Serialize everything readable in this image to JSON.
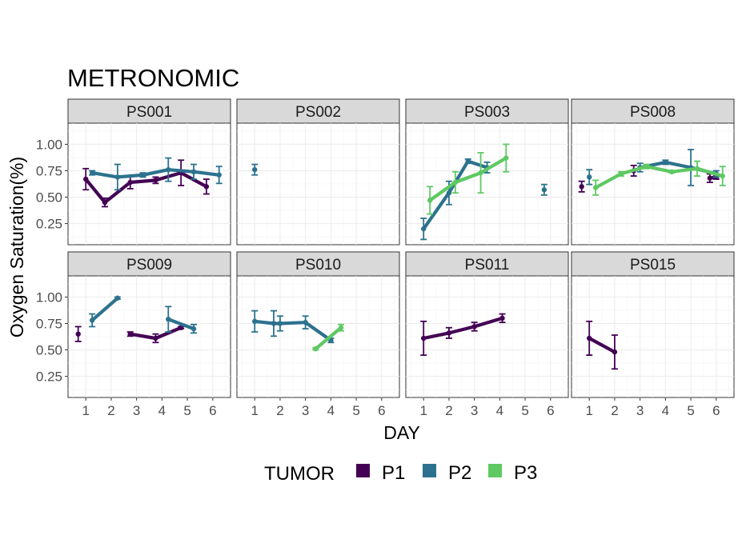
{
  "chart_data": {
    "type": "line",
    "title": "METRONOMIC",
    "xlabel": "DAY",
    "ylabel": "Oxygen Saturation(%)",
    "xlim": [
      0.3,
      6.7
    ],
    "ylim": [
      0.05,
      1.2
    ],
    "x_ticks": [
      "1",
      "2",
      "3",
      "4",
      "5",
      "6"
    ],
    "y_ticks": [
      "0.25",
      "0.50",
      "0.75",
      "1.00"
    ],
    "grid": true,
    "legend": {
      "title": "TUMOR",
      "position": "bottom",
      "entries": [
        {
          "name": "P1",
          "color": "#440154"
        },
        {
          "name": "P2",
          "color": "#2c728e"
        },
        {
          "name": "P3",
          "color": "#5ec962"
        }
      ]
    },
    "panels": [
      {
        "name": "PS001",
        "series": [
          {
            "name": "P1",
            "segments": [
              [
                [
                  1,
                  0.67,
                  0.1
                ],
                [
                  1.75,
                  0.45,
                  0.04
                ],
                [
                  2.75,
                  0.64,
                  0.06
                ],
                [
                  3.75,
                  0.66,
                  0.03
                ],
                [
                  4.75,
                  0.73,
                  0.12
                ],
                [
                  5.75,
                  0.6,
                  0.07
                ]
              ]
            ]
          },
          {
            "name": "P2",
            "segments": [
              [
                [
                  1.25,
                  0.73,
                  0.02
                ],
                [
                  2.25,
                  0.69,
                  0.12
                ],
                [
                  3.25,
                  0.71,
                  0.02
                ],
                [
                  4.25,
                  0.76,
                  0.11
                ],
                [
                  5.25,
                  0.74,
                  0.07
                ],
                [
                  6.25,
                  0.71,
                  0.08
                ]
              ]
            ]
          }
        ]
      },
      {
        "name": "PS002",
        "series": [
          {
            "name": "P2",
            "segments": [
              [
                [
                  1,
                  0.76,
                  0.05
                ]
              ]
            ]
          }
        ]
      },
      {
        "name": "PS003",
        "series": [
          {
            "name": "P2",
            "segments": [
              [
                [
                  1,
                  0.2,
                  0.1
                ],
                [
                  2,
                  0.54,
                  0.11
                ],
                [
                  2.75,
                  0.84,
                  0.02
                ],
                [
                  3.5,
                  0.78,
                  0.05
                ]
              ],
              [
                [
                  5.75,
                  0.57,
                  0.05
                ]
              ]
            ]
          },
          {
            "name": "P3",
            "segments": [
              [
                [
                  1.25,
                  0.47,
                  0.13
                ],
                [
                  2.25,
                  0.64,
                  0.1
                ],
                [
                  3.25,
                  0.73,
                  0.19
                ],
                [
                  4.25,
                  0.87,
                  0.13
                ]
              ]
            ]
          }
        ]
      },
      {
        "name": "PS008",
        "series": [
          {
            "name": "P1",
            "segments": [
              [
                [
                  0.7,
                  0.6,
                  0.05
                ]
              ],
              [
                [
                  2.75,
                  0.75,
                  0.05
                ]
              ],
              [
                [
                  5.75,
                  0.68,
                  0.04
                ],
                [
                  6,
                  0.69,
                  0.02
                ]
              ]
            ]
          },
          {
            "name": "P2",
            "segments": [
              [
                [
                  1,
                  0.69,
                  0.07
                ]
              ],
              [
                [
                  3,
                  0.78,
                  0.04
                ],
                [
                  4,
                  0.83,
                  0.02
                ],
                [
                  5,
                  0.78,
                  0.17
                ],
                [
                  6,
                  0.72,
                  0.03
                ]
              ]
            ]
          },
          {
            "name": "P3",
            "segments": [
              [
                [
                  1.25,
                  0.59,
                  0.07
                ],
                [
                  2.25,
                  0.72,
                  0.02
                ],
                [
                  3.25,
                  0.79,
                  0.02
                ],
                [
                  4.25,
                  0.74,
                  0.01
                ],
                [
                  5.25,
                  0.77,
                  0.07
                ],
                [
                  6.25,
                  0.7,
                  0.09
                ]
              ]
            ]
          }
        ]
      },
      {
        "name": "PS009",
        "series": [
          {
            "name": "P1",
            "segments": [
              [
                [
                  0.7,
                  0.65,
                  0.07
                ]
              ],
              [
                [
                  2.75,
                  0.65,
                  0.02
                ],
                [
                  3.75,
                  0.61,
                  0.04
                ],
                [
                  4.75,
                  0.71,
                  0.01
                ]
              ]
            ]
          },
          {
            "name": "P2",
            "segments": [
              [
                [
                  1.25,
                  0.78,
                  0.06
                ],
                [
                  2.25,
                  0.99,
                  0.01
                ]
              ],
              [
                [
                  4.25,
                  0.79,
                  0.12
                ],
                [
                  5.25,
                  0.7,
                  0.04
                ]
              ]
            ]
          }
        ]
      },
      {
        "name": "PS010",
        "series": [
          {
            "name": "P2",
            "segments": [
              [
                [
                  1,
                  0.77,
                  0.1
                ],
                [
                  1.75,
                  0.75,
                  0.12
                ],
                [
                  2,
                  0.75,
                  0.07
                ],
                [
                  3,
                  0.76,
                  0.06
                ],
                [
                  4,
                  0.59,
                  0.02
                ]
              ]
            ]
          },
          {
            "name": "P3",
            "segments": [
              [
                [
                  3.4,
                  0.51,
                  0.01
                ],
                [
                  4.4,
                  0.71,
                  0.03
                ]
              ]
            ]
          }
        ]
      },
      {
        "name": "PS011",
        "series": [
          {
            "name": "P1",
            "segments": [
              [
                [
                  1,
                  0.61,
                  0.16
                ],
                [
                  2,
                  0.66,
                  0.05
                ],
                [
                  3,
                  0.72,
                  0.04
                ],
                [
                  4.1,
                  0.8,
                  0.04
                ]
              ]
            ]
          }
        ]
      },
      {
        "name": "PS015",
        "series": [
          {
            "name": "P1",
            "segments": [
              [
                [
                  1,
                  0.61,
                  0.16
                ],
                [
                  2,
                  0.48,
                  0.16
                ]
              ]
            ]
          }
        ]
      }
    ]
  }
}
